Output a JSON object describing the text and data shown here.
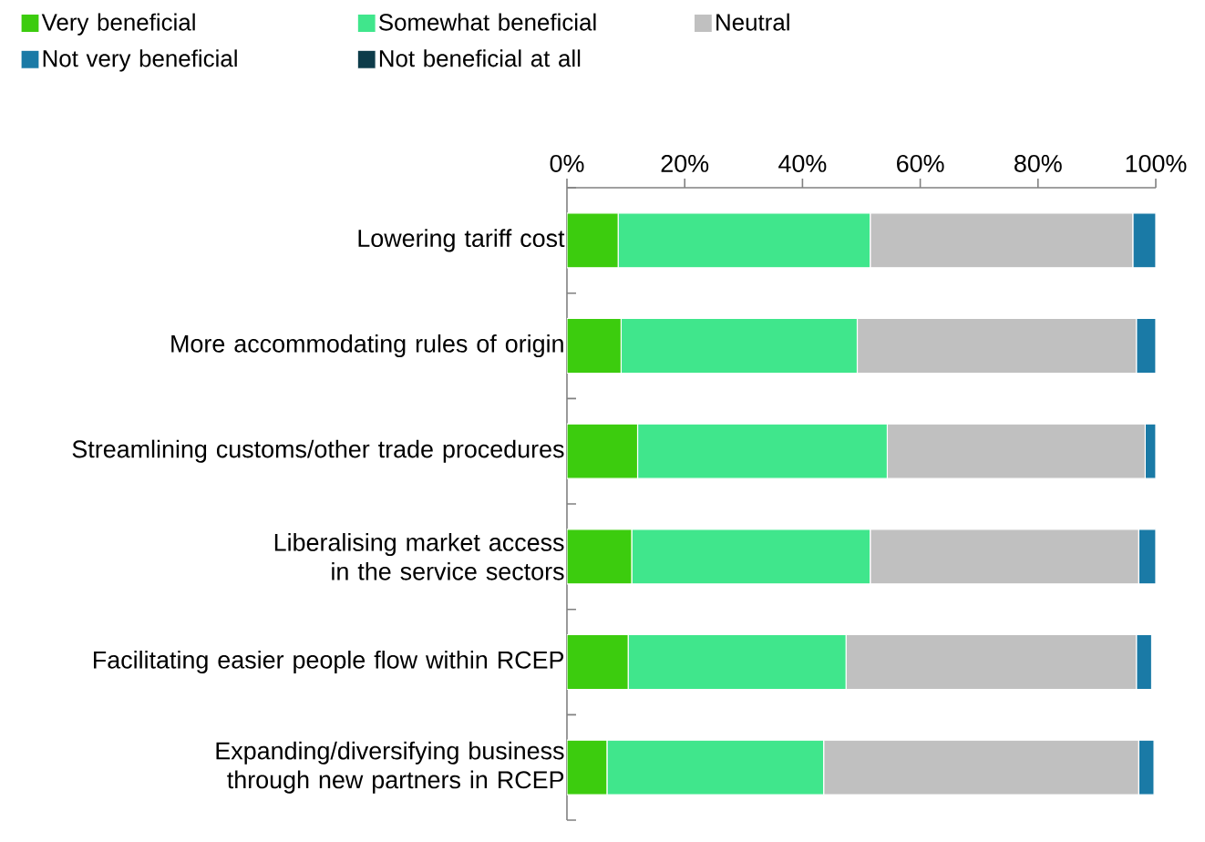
{
  "chart_data": {
    "type": "bar",
    "orientation": "horizontal",
    "stacked": true,
    "categories": [
      "Lowering tariff cost",
      "More accommodating rules of origin",
      "Streamlining customs/other trade procedures",
      "Liberalising market access in the service sectors",
      "Facilitating easier people flow within RCEP",
      "Expanding/diversifying business through new partners in RCEP"
    ],
    "series": [
      {
        "name": "Very beneficial",
        "color": "#3ccc0e",
        "values": [
          8.7,
          9.2,
          12.0,
          11.0,
          10.4,
          6.8
        ]
      },
      {
        "name": "Somewhat beneficial",
        "color": "#40e68c",
        "values": [
          42.8,
          40.1,
          42.4,
          40.5,
          37.0,
          36.8
        ]
      },
      {
        "name": "Neutral",
        "color": "#c0c0c0",
        "values": [
          44.6,
          47.4,
          43.8,
          45.6,
          49.3,
          53.5
        ]
      },
      {
        "name": "Not very beneficial",
        "color": "#1a7aa6",
        "values": [
          3.9,
          3.3,
          1.8,
          2.9,
          2.6,
          2.6
        ]
      },
      {
        "name": "Not beneficial at all",
        "color": "#0d3c4a",
        "values": [
          0,
          0,
          0,
          0,
          0,
          0
        ]
      }
    ],
    "xlim": [
      0,
      100
    ],
    "xticks": [
      {
        "value": 0,
        "label": "0%"
      },
      {
        "value": 20,
        "label": "20%"
      },
      {
        "value": 40,
        "label": "40%"
      },
      {
        "value": 60,
        "label": "60%"
      },
      {
        "value": 80,
        "label": "80%"
      },
      {
        "value": 100,
        "label": "100%"
      }
    ],
    "legend": "top"
  }
}
